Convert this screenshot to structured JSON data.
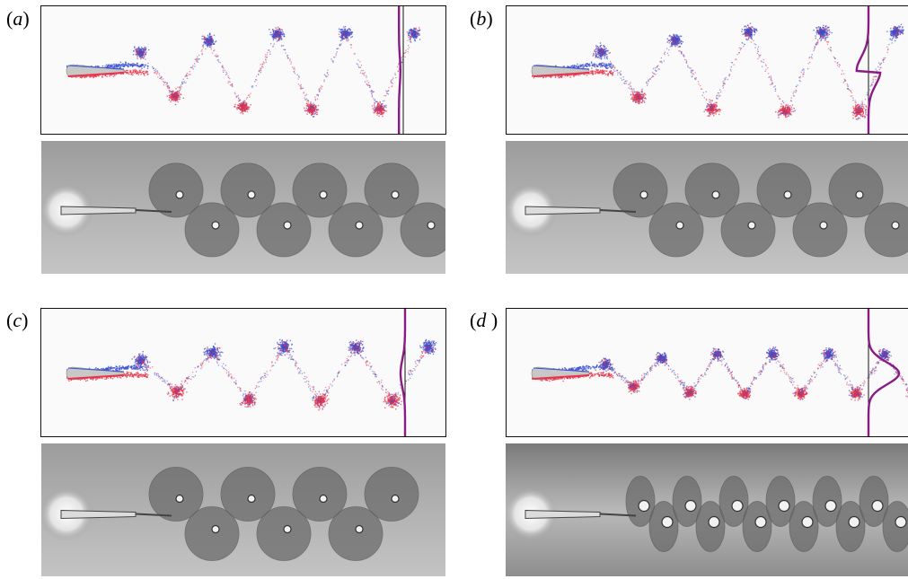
{
  "figure": {
    "panels": [
      {
        "id": "a",
        "label_open": "(",
        "label_letter": "a",
        "label_close": ")",
        "label": "(a)",
        "sim_vortices": 9,
        "photo_vortices": 8
      },
      {
        "id": "b",
        "label_open": "(",
        "label_letter": "b",
        "label_close": ")",
        "label": "(b)",
        "sim_vortices": 9,
        "photo_vortices": 8
      },
      {
        "id": "c",
        "label_open": "(",
        "label_letter": "c",
        "label_close": ")",
        "label": "(c)",
        "sim_vortices": 9,
        "photo_vortices": 7
      },
      {
        "id": "d",
        "label_open": "(",
        "label_letter": "d ",
        "label_close": ")",
        "label": "(d )",
        "sim_vortices": 12,
        "photo_vortices": 12
      }
    ],
    "colors": {
      "positive_vorticity": "#e8344a",
      "negative_vorticity": "#3a4fd0",
      "velocity_profile": "#8a1a86",
      "frame": "#111111",
      "photo_background": "#8e8e8e",
      "foil": "#c8c8c8"
    }
  }
}
